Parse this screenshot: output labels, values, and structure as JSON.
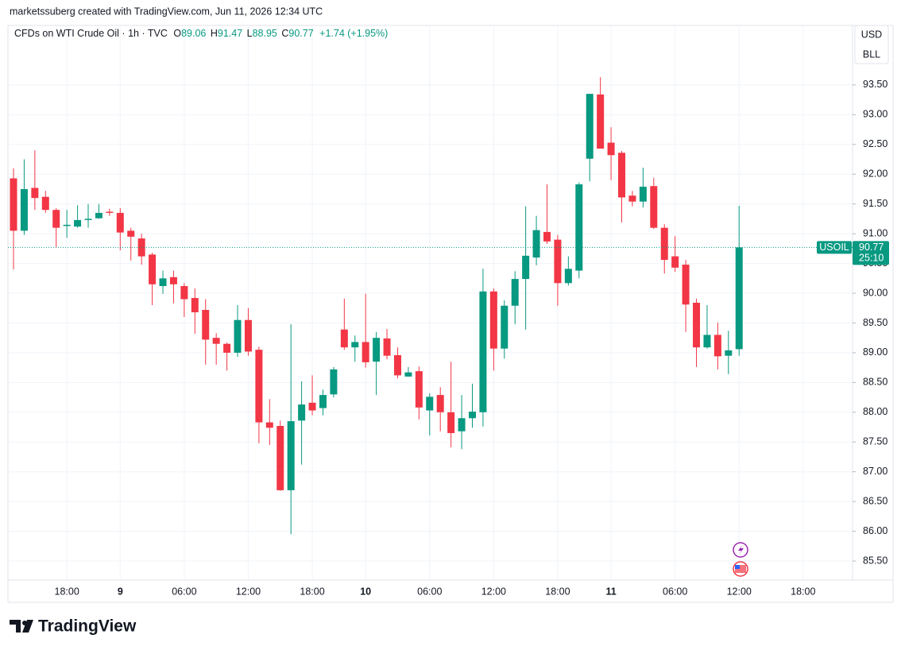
{
  "header": {
    "attribution": "marketssuberg created with TradingView.com, Jun 11, 2026 12:34 UTC",
    "logo": "TradingView"
  },
  "chart_data": {
    "type": "candlestick",
    "title": "CFDs on WTI Crude Oil · 1h · TVC",
    "legend": {
      "open_label": "O",
      "open": 89.06,
      "high_label": "H",
      "high": 91.47,
      "low_label": "L",
      "low": 88.95,
      "close_label": "C",
      "close": 90.77,
      "change": "+1.74 (+1.95%)"
    },
    "currency": "USD",
    "unit": "BLL",
    "symbol": "USOIL",
    "last_price": 90.77,
    "countdown": "25:10",
    "up_color": "#089981",
    "down_color": "#f23645",
    "grid": true,
    "categories": [
      null,
      null,
      null,
      null,
      null,
      "18:00",
      null,
      null,
      null,
      null,
      "9",
      null,
      null,
      null,
      null,
      null,
      "06:00",
      null,
      null,
      null,
      null,
      null,
      "12:00",
      null,
      null,
      null,
      null,
      null,
      "18:00",
      null,
      null,
      null,
      null,
      "10",
      null,
      null,
      null,
      null,
      null,
      "06:00",
      null,
      null,
      null,
      null,
      null,
      "12:00",
      null,
      null,
      null,
      null,
      null,
      "18:00",
      null,
      null,
      null,
      null,
      "11",
      null,
      null,
      null,
      null,
      null,
      "06:00",
      null,
      null,
      null,
      null,
      null,
      "12:00",
      null,
      null,
      null,
      null,
      null,
      "18:00"
    ],
    "open": [
      91.93,
      91.05,
      91.77,
      91.62,
      91.4,
      91.13,
      91.12,
      91.23,
      91.26,
      91.37,
      91.35,
      91.05,
      90.92,
      90.65,
      90.12,
      90.27,
      90.12,
      89.92,
      89.72,
      89.25,
      89.15,
      89.0,
      89.55,
      89.05,
      87.83,
      87.77,
      86.69,
      87.86,
      88.16,
      88.07,
      88.3,
      89.39,
      89.09,
      89.18,
      88.85,
      89.24,
      88.96,
      88.6,
      88.69,
      88.03,
      88.29,
      88.0,
      87.68,
      87.9,
      88.0,
      90.03,
      89.07,
      89.79,
      90.24,
      90.6,
      91.03,
      90.9,
      90.17,
      90.38,
      92.26,
      93.34,
      92.53,
      92.36,
      91.64,
      91.54,
      91.8,
      91.1,
      90.62,
      90.48,
      89.84,
      89.09,
      89.3,
      88.95,
      89.06,
      null,
      null,
      null,
      null,
      null,
      null
    ],
    "high": [
      92.1,
      92.25,
      92.4,
      91.72,
      91.43,
      91.4,
      91.48,
      91.5,
      91.5,
      91.42,
      91.43,
      91.1,
      91.0,
      90.68,
      90.38,
      90.38,
      90.17,
      90.08,
      89.9,
      89.33,
      89.17,
      89.8,
      89.75,
      89.1,
      88.22,
      87.86,
      89.48,
      88.52,
      88.62,
      88.38,
      88.76,
      89.91,
      89.29,
      89.99,
      89.35,
      89.4,
      89.09,
      88.76,
      88.77,
      88.32,
      88.42,
      88.85,
      88.29,
      88.48,
      90.41,
      90.08,
      89.88,
      90.37,
      91.46,
      91.3,
      91.83,
      90.98,
      90.62,
      91.86,
      93.35,
      93.63,
      92.79,
      92.39,
      91.72,
      92.11,
      91.94,
      91.16,
      90.96,
      90.56,
      89.91,
      89.8,
      89.51,
      89.37,
      91.47,
      null,
      null,
      null,
      null,
      null,
      null
    ],
    "low": [
      90.4,
      90.98,
      91.4,
      91.35,
      90.77,
      90.93,
      91.1,
      91.1,
      91.25,
      91.3,
      90.72,
      90.55,
      90.48,
      89.8,
      89.99,
      89.83,
      89.6,
      89.32,
      88.8,
      88.8,
      88.7,
      88.93,
      88.95,
      87.48,
      87.45,
      86.68,
      85.95,
      87.12,
      87.95,
      87.95,
      88.25,
      89.05,
      88.85,
      88.75,
      88.29,
      88.89,
      88.57,
      88.6,
      87.88,
      87.61,
      87.68,
      87.41,
      87.38,
      87.74,
      87.76,
      88.7,
      88.9,
      89.48,
      89.39,
      90.47,
      90.83,
      89.79,
      90.13,
      90.25,
      91.88,
      92.43,
      91.9,
      91.19,
      91.46,
      91.44,
      91.08,
      90.33,
      90.36,
      89.35,
      88.76,
      89.07,
      88.72,
      88.64,
      88.95,
      null,
      null,
      null,
      null,
      null,
      null
    ],
    "close": [
      91.05,
      91.75,
      91.6,
      91.4,
      91.1,
      91.15,
      91.23,
      91.25,
      91.35,
      91.35,
      91.02,
      90.95,
      90.62,
      90.15,
      90.25,
      90.15,
      89.9,
      89.68,
      89.22,
      89.15,
      89.0,
      89.55,
      89.02,
      87.83,
      87.74,
      86.69,
      87.85,
      88.13,
      88.03,
      88.29,
      88.72,
      89.09,
      89.18,
      88.84,
      89.25,
      88.95,
      88.62,
      88.67,
      88.08,
      88.26,
      88.0,
      87.65,
      87.9,
      88.01,
      90.03,
      89.07,
      89.79,
      90.24,
      90.63,
      91.06,
      90.87,
      90.17,
      90.41,
      91.83,
      93.35,
      92.43,
      92.32,
      91.61,
      91.54,
      91.79,
      91.1,
      90.56,
      90.43,
      89.81,
      89.09,
      89.3,
      88.94,
      89.04,
      90.77,
      null,
      null,
      null,
      null,
      null,
      null
    ],
    "ylim": [
      85.18,
      94.5
    ],
    "yticks": [
      {
        "value": 85.5,
        "label": "85.50"
      },
      {
        "value": 86,
        "label": "86.00"
      },
      {
        "value": 86.5,
        "label": "86.50"
      },
      {
        "value": 87,
        "label": "87.00"
      },
      {
        "value": 87.5,
        "label": "87.50"
      },
      {
        "value": 88,
        "label": "88.00"
      },
      {
        "value": 88.5,
        "label": "88.50"
      },
      {
        "value": 89,
        "label": "89.00"
      },
      {
        "value": 89.5,
        "label": "89.50"
      },
      {
        "value": 90,
        "label": "90.00"
      },
      {
        "value": 90.5,
        "label": "90.50"
      },
      {
        "value": 91,
        "label": "91.00"
      },
      {
        "value": 91.5,
        "label": "91.50"
      },
      {
        "value": 92,
        "label": "92.00"
      },
      {
        "value": 92.5,
        "label": "92.50"
      },
      {
        "value": 93,
        "label": "93.00"
      },
      {
        "value": 93.5,
        "label": "93.50"
      }
    ]
  }
}
